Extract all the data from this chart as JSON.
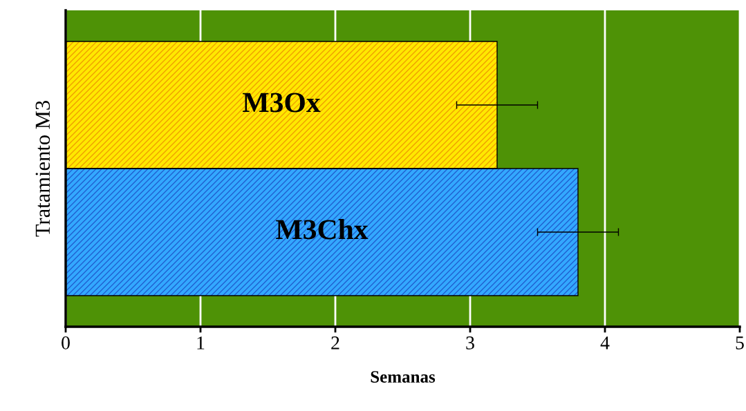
{
  "chart_data": {
    "type": "bar",
    "orientation": "horizontal",
    "categories": [
      "M3Ox",
      "M3Chx"
    ],
    "values": [
      3.2,
      3.8
    ],
    "errors": [
      0.3,
      0.3
    ],
    "colors": [
      "#ffe800",
      "#33a8ff"
    ],
    "xlabel": "Semanas",
    "ylabel": "Tratamiento M3",
    "xlim": [
      0,
      5
    ],
    "xticks": [
      0,
      1,
      2,
      3,
      4,
      5
    ],
    "grid": "x",
    "legend": false
  }
}
